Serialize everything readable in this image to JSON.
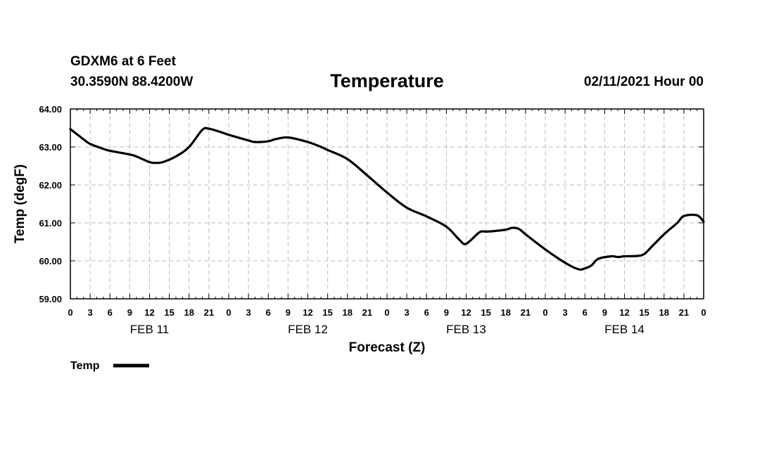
{
  "header": {
    "station": "GDXM6 at 6 Feet",
    "coords": "30.3590N 88.4200W",
    "title": "Temperature",
    "issued": "02/11/2021 Hour 00"
  },
  "chart_data": {
    "type": "line",
    "title": "Temperature",
    "xlabel": "Forecast (Z)",
    "ylabel": "Temp (degF)",
    "xlim": [
      0,
      96
    ],
    "ylim": [
      59,
      64
    ],
    "grid": true,
    "y_ticks": [
      "59.00",
      "60.00",
      "61.00",
      "62.00",
      "63.00",
      "64.00"
    ],
    "x_tick_labels": [
      "0",
      "3",
      "6",
      "9",
      "12",
      "15",
      "18",
      "21",
      "0",
      "3",
      "6",
      "9",
      "12",
      "15",
      "18",
      "21",
      "0",
      "3",
      "6",
      "9",
      "12",
      "15",
      "18",
      "21",
      "0",
      "3",
      "6",
      "9",
      "12",
      "15",
      "18",
      "21",
      "0"
    ],
    "date_labels": [
      {
        "label": "FEB 11",
        "hour": 12
      },
      {
        "label": "FEB 12",
        "hour": 36
      },
      {
        "label": "FEB 13",
        "hour": 60
      },
      {
        "label": "FEB 14",
        "hour": 84
      }
    ],
    "legend": {
      "label": "Temp",
      "position": "bottom-left"
    },
    "series": [
      {
        "name": "Temp",
        "color": "#000000",
        "x": [
          0,
          2,
          3,
          5,
          6,
          9,
          10,
          12,
          13,
          14,
          16,
          18,
          20,
          21,
          23,
          24,
          27,
          28,
          30,
          31,
          33,
          36,
          38,
          39,
          42,
          45,
          48,
          51,
          54,
          57,
          59,
          60,
          62,
          63,
          64,
          66,
          67,
          68,
          69,
          72,
          75,
          77,
          78,
          79,
          80,
          82,
          83,
          84,
          86,
          87,
          88,
          90,
          92,
          93,
          95,
          96
        ],
        "values": [
          63.47,
          63.2,
          63.08,
          62.95,
          62.9,
          62.8,
          62.75,
          62.6,
          62.58,
          62.6,
          62.75,
          63.0,
          63.45,
          63.48,
          63.38,
          63.32,
          63.17,
          63.13,
          63.15,
          63.2,
          63.25,
          63.13,
          63.0,
          62.92,
          62.68,
          62.25,
          61.8,
          61.4,
          61.17,
          60.9,
          60.55,
          60.45,
          60.75,
          60.77,
          60.78,
          60.82,
          60.87,
          60.84,
          60.7,
          60.3,
          59.95,
          59.78,
          59.8,
          59.88,
          60.05,
          60.12,
          60.1,
          60.12,
          60.13,
          60.18,
          60.35,
          60.7,
          61.0,
          61.18,
          61.2,
          61.03
        ]
      }
    ]
  }
}
